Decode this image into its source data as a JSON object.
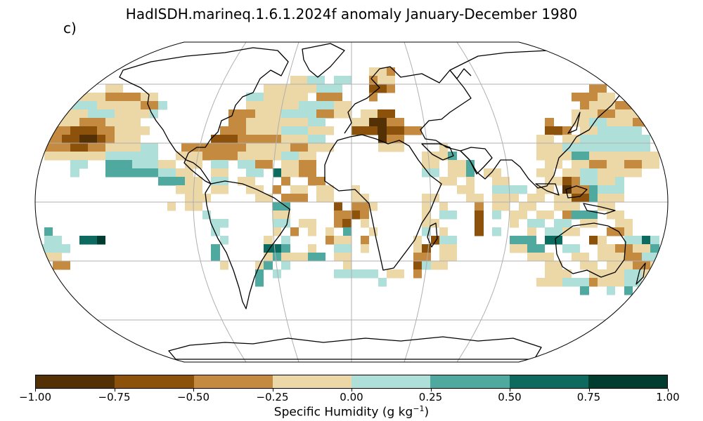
{
  "title": "HadISDH.marineq.1.6.1.2024f anomaly January-December 1980",
  "panel_label": "c)",
  "map": {
    "projection": "Robinson",
    "graticule": "grid",
    "grid_color": "#b0b0b0",
    "land_outline_color": "#000000"
  },
  "colorbar": {
    "label": "Specific Humidity (g kg",
    "label_exponent": "−1",
    "label_close": ")",
    "ticks": [
      "−1.00",
      "−0.75",
      "−0.50",
      "−0.25",
      "0.00",
      "0.25",
      "0.50",
      "0.75",
      "1.00"
    ],
    "range": [
      -1.0,
      1.0
    ],
    "colors": [
      "#543005",
      "#8c510a",
      "#c48a3f",
      "#ecd7a6",
      "#aedfd9",
      "#4fa99e",
      "#0c6a5e",
      "#003c30"
    ]
  }
}
